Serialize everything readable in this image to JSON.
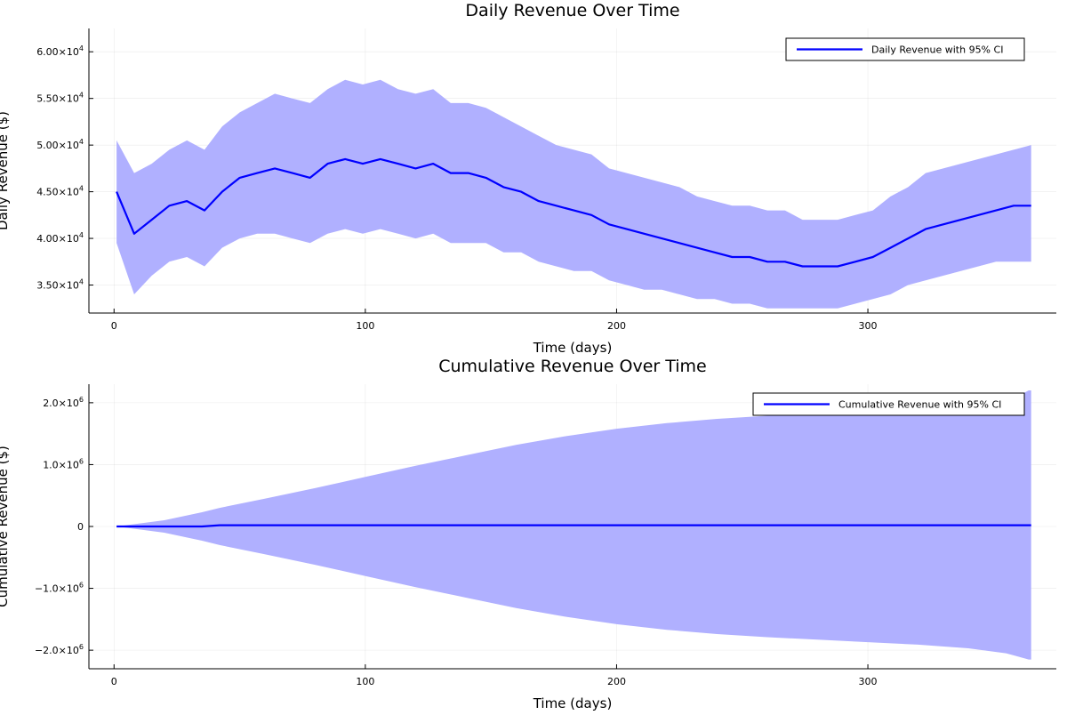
{
  "chart_data": [
    {
      "type": "line",
      "title": "Daily Revenue Over Time",
      "xlabel": "Time (days)",
      "ylabel": "Daily Revenue ($)",
      "xlim": [
        -10,
        375
      ],
      "ylim": [
        32000,
        62500
      ],
      "xticks": [
        0,
        100,
        200,
        300
      ],
      "xtick_labels": [
        "0",
        "100",
        "200",
        "300"
      ],
      "yticks": [
        35000,
        40000,
        45000,
        50000,
        55000,
        60000
      ],
      "ytick_labels": [
        {
          "base": "3.50×10",
          "exp": "4"
        },
        {
          "base": "4.00×10",
          "exp": "4"
        },
        {
          "base": "4.50×10",
          "exp": "4"
        },
        {
          "base": "5.00×10",
          "exp": "4"
        },
        {
          "base": "5.50×10",
          "exp": "4"
        },
        {
          "base": "6.00×10",
          "exp": "4"
        }
      ],
      "grid": true,
      "legend_position": "top-right",
      "series": [
        {
          "name": "Daily Revenue with 95% CI",
          "color": "#0000ff",
          "band_color": "#b0b0ff",
          "x": [
            1,
            8,
            15,
            22,
            29,
            36,
            43,
            50,
            57,
            64,
            71,
            78,
            85,
            92,
            99,
            106,
            113,
            120,
            127,
            134,
            141,
            148,
            155,
            162,
            169,
            176,
            183,
            190,
            197,
            204,
            211,
            218,
            225,
            232,
            239,
            246,
            253,
            260,
            267,
            274,
            281,
            288,
            295,
            302,
            309,
            316,
            323,
            330,
            337,
            344,
            351,
            358,
            365
          ],
          "y": [
            45000,
            40500,
            42000,
            43500,
            44000,
            43000,
            45000,
            46500,
            47000,
            47500,
            47000,
            46500,
            48000,
            48500,
            48000,
            48500,
            48000,
            47500,
            48000,
            47000,
            47000,
            46500,
            45500,
            45000,
            44000,
            43500,
            43000,
            42500,
            41500,
            41000,
            40500,
            40000,
            39500,
            39000,
            38500,
            38000,
            38000,
            37500,
            37500,
            37000,
            37000,
            37000,
            37500,
            38000,
            39000,
            40000,
            41000,
            41500,
            42000,
            42500,
            43000,
            43500,
            43500
          ],
          "ci_lower": [
            39500,
            34000,
            36000,
            37500,
            38000,
            37000,
            39000,
            40000,
            40500,
            40500,
            40000,
            39500,
            40500,
            41000,
            40500,
            41000,
            40500,
            40000,
            40500,
            39500,
            39500,
            39500,
            38500,
            38500,
            37500,
            37000,
            36500,
            36500,
            35500,
            35000,
            34500,
            34500,
            34000,
            33500,
            33500,
            33000,
            33000,
            32500,
            32500,
            32500,
            32500,
            32500,
            33000,
            33500,
            34000,
            35000,
            35500,
            36000,
            36500,
            37000,
            37500,
            37500,
            37500
          ],
          "ci_upper": [
            50500,
            47000,
            48000,
            49500,
            50500,
            49500,
            52000,
            53500,
            54500,
            55500,
            55000,
            54500,
            56000,
            57000,
            56500,
            57000,
            56000,
            55500,
            56000,
            54500,
            54500,
            54000,
            53000,
            52000,
            51000,
            50000,
            49500,
            49000,
            47500,
            47000,
            46500,
            46000,
            45500,
            44500,
            44000,
            43500,
            43500,
            43000,
            43000,
            42000,
            42000,
            42000,
            42500,
            43000,
            44500,
            45500,
            47000,
            47500,
            48000,
            48500,
            49000,
            49500,
            50000
          ]
        }
      ]
    },
    {
      "type": "line",
      "title": "Cumulative Revenue Over Time",
      "xlabel": "Time (days)",
      "ylabel": "Cumulative Revenue ($)",
      "xlim": [
        -10,
        375
      ],
      "ylim": [
        -2300000,
        2300000
      ],
      "xticks": [
        0,
        100,
        200,
        300
      ],
      "xtick_labels": [
        "0",
        "100",
        "200",
        "300"
      ],
      "yticks": [
        -2000000,
        -1000000,
        0,
        1000000,
        2000000
      ],
      "ytick_labels": [
        {
          "base": "−2.0×10",
          "exp": "6"
        },
        {
          "base": "−1.0×10",
          "exp": "6"
        },
        {
          "base": "0",
          "exp": ""
        },
        {
          "base": "1.0×10",
          "exp": "6"
        },
        {
          "base": "2.0×10",
          "exp": "6"
        }
      ],
      "grid": true,
      "legend_position": "top-right",
      "series": [
        {
          "name": "Cumulative Revenue with 95% CI",
          "color": "#0000ff",
          "band_color": "#b0b0ff",
          "x": [
            1,
            20,
            35,
            42,
            60,
            80,
            100,
            120,
            140,
            160,
            180,
            200,
            220,
            240,
            260,
            280,
            300,
            320,
            340,
            355,
            364,
            365
          ],
          "y": [
            0,
            0,
            0,
            20000,
            20000,
            20000,
            20000,
            20000,
            20000,
            20000,
            20000,
            20000,
            20000,
            20000,
            20000,
            20000,
            20000,
            20000,
            20000,
            20000,
            20000,
            20000
          ],
          "ci_lower": [
            0,
            -100000,
            -230000,
            -300000,
            -450000,
            -620000,
            -800000,
            -980000,
            -1150000,
            -1320000,
            -1460000,
            -1580000,
            -1670000,
            -1740000,
            -1790000,
            -1830000,
            -1870000,
            -1910000,
            -1970000,
            -2050000,
            -2150000,
            -2150000
          ],
          "ci_upper": [
            0,
            100000,
            230000,
            300000,
            450000,
            620000,
            800000,
            980000,
            1150000,
            1320000,
            1460000,
            1580000,
            1670000,
            1740000,
            1790000,
            1830000,
            1850000,
            1870000,
            1900000,
            2000000,
            2200000,
            2200000
          ]
        }
      ]
    }
  ]
}
